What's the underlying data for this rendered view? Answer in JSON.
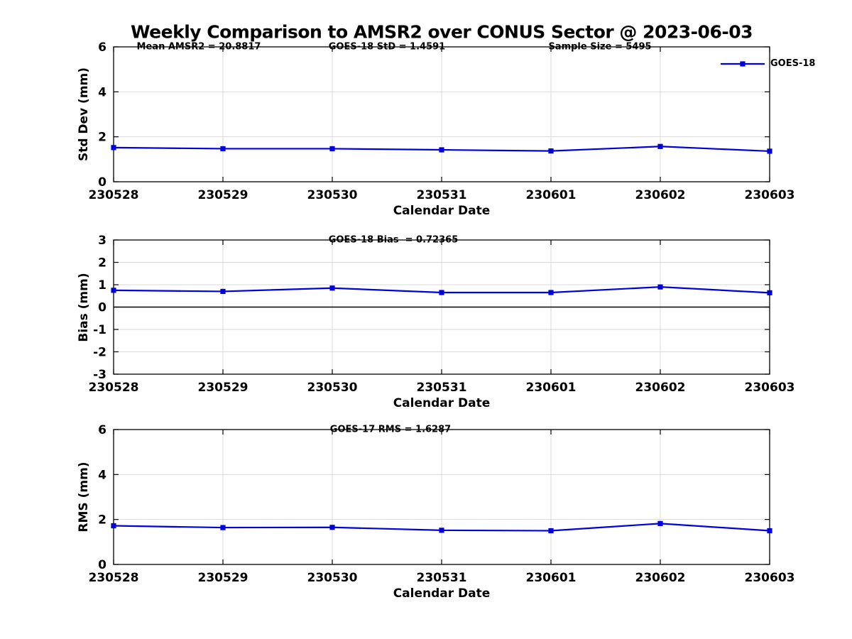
{
  "title": "Weekly Comparison to AMSR2 over CONUS Sector @ 2023-06-03",
  "legend": {
    "label": "GOES-18",
    "line_color": "#0000dd"
  },
  "colors": {
    "line": "#0000dd",
    "grid": "#d9d9d9",
    "axis": "#000000",
    "zero_line": "#000000",
    "background": "#ffffff"
  },
  "chart_data": [
    {
      "type": "line",
      "ylabel": "Std Dev (mm)",
      "xlabel": "Calendar Date",
      "categories": [
        "230528",
        "230529",
        "230530",
        "230531",
        "230601",
        "230602",
        "230603"
      ],
      "series": [
        {
          "name": "GOES-18",
          "marker": "square",
          "values": [
            1.52,
            1.47,
            1.47,
            1.42,
            1.37,
            1.57,
            1.36
          ]
        }
      ],
      "ylim": [
        0,
        6
      ],
      "yticks": [
        0,
        2,
        4,
        6
      ],
      "grid": true,
      "zero_line": false,
      "legend_position": "upper-right-outside",
      "annotations": [
        "Mean AMSR2 = 20.8817",
        "GOES-18 StD = 1.4591",
        "Sample Size = 5495"
      ]
    },
    {
      "type": "line",
      "ylabel": "Bias (mm)",
      "xlabel": "Calendar Date",
      "categories": [
        "230528",
        "230529",
        "230530",
        "230531",
        "230601",
        "230602",
        "230603"
      ],
      "series": [
        {
          "name": "GOES-18",
          "marker": "square",
          "values": [
            0.75,
            0.7,
            0.85,
            0.65,
            0.65,
            0.9,
            0.64
          ]
        }
      ],
      "ylim": [
        -3,
        3
      ],
      "yticks": [
        -3,
        -2,
        -1,
        0,
        1,
        2,
        3
      ],
      "grid": true,
      "zero_line": true,
      "annotations": [
        "GOES-18 Bias  = 0.72365"
      ]
    },
    {
      "type": "line",
      "ylabel": "RMS (mm)",
      "xlabel": "Calendar Date",
      "categories": [
        "230528",
        "230529",
        "230530",
        "230531",
        "230601",
        "230602",
        "230603"
      ],
      "series": [
        {
          "name": "GOES-18",
          "marker": "square",
          "values": [
            1.72,
            1.64,
            1.65,
            1.52,
            1.5,
            1.82,
            1.5
          ]
        }
      ],
      "ylim": [
        0,
        6
      ],
      "yticks": [
        0,
        2,
        4,
        6
      ],
      "grid": true,
      "zero_line": false,
      "annotations": [
        "GOES-17 RMS = 1.6287"
      ]
    }
  ]
}
